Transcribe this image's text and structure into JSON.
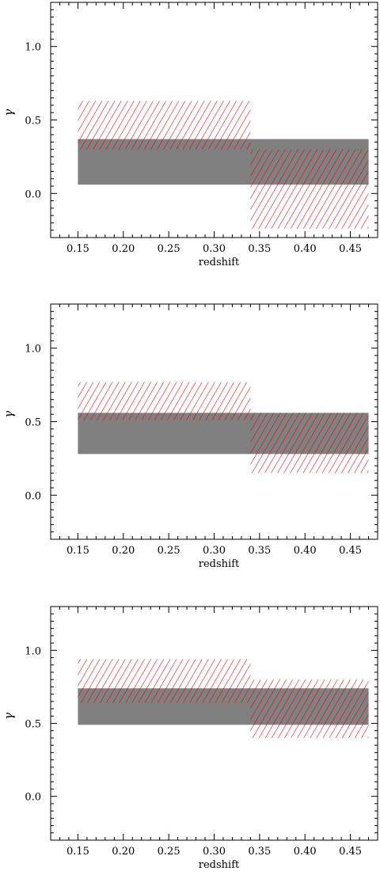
{
  "colors": {
    "band_fill": "#808080",
    "hatch": "#e00000",
    "axis": "#000000"
  },
  "chart_data": [
    {
      "type": "area",
      "xlabel": "redshift",
      "ylabel": "γ",
      "xlim": [
        0.12,
        0.48
      ],
      "ylim": [
        -0.3,
        1.3
      ],
      "x_ticks": [
        "0.15",
        "0.20",
        "0.25",
        "0.30",
        "0.35",
        "0.40",
        "0.45"
      ],
      "y_ticks": [
        "0.0",
        "0.5",
        "1.0"
      ],
      "band": {
        "x": [
          0.15,
          0.47
        ],
        "y": [
          0.06,
          0.37
        ]
      },
      "hatched_boxes": [
        {
          "x": [
            0.15,
            0.34
          ],
          "y": [
            0.3,
            0.63
          ]
        },
        {
          "x": [
            0.34,
            0.47
          ],
          "y": [
            -0.24,
            0.3
          ]
        }
      ]
    },
    {
      "type": "area",
      "xlabel": "redshift",
      "ylabel": "γ",
      "xlim": [
        0.12,
        0.48
      ],
      "ylim": [
        -0.3,
        1.3
      ],
      "x_ticks": [
        "0.15",
        "0.20",
        "0.25",
        "0.30",
        "0.35",
        "0.40",
        "0.45"
      ],
      "y_ticks": [
        "0.0",
        "0.5",
        "1.0"
      ],
      "band": {
        "x": [
          0.15,
          0.47
        ],
        "y": [
          0.28,
          0.56
        ]
      },
      "hatched_boxes": [
        {
          "x": [
            0.15,
            0.34
          ],
          "y": [
            0.51,
            0.77
          ]
        },
        {
          "x": [
            0.34,
            0.47
          ],
          "y": [
            0.15,
            0.56
          ]
        }
      ]
    },
    {
      "type": "area",
      "xlabel": "redshift",
      "ylabel": "γ",
      "xlim": [
        0.12,
        0.48
      ],
      "ylim": [
        -0.3,
        1.3
      ],
      "x_ticks": [
        "0.15",
        "0.20",
        "0.25",
        "0.30",
        "0.35",
        "0.40",
        "0.45"
      ],
      "y_ticks": [
        "0.0",
        "0.5",
        "1.0"
      ],
      "band": {
        "x": [
          0.15,
          0.47
        ],
        "y": [
          0.49,
          0.74
        ]
      },
      "hatched_boxes": [
        {
          "x": [
            0.15,
            0.34
          ],
          "y": [
            0.64,
            0.94
          ]
        },
        {
          "x": [
            0.34,
            0.47
          ],
          "y": [
            0.4,
            0.8
          ]
        }
      ]
    }
  ]
}
